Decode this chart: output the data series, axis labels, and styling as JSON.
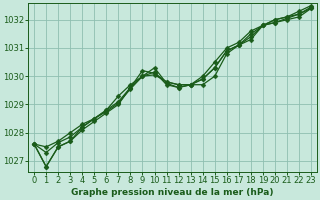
{
  "background_color": "#c8e8dc",
  "plot_bg_color": "#c8e8dc",
  "grid_color": "#8fbfb0",
  "line_color": "#1a5c1a",
  "marker_color": "#1a5c1a",
  "xlabel": "Graphe pression niveau de la mer (hPa)",
  "ylim": [
    1026.6,
    1032.6
  ],
  "xlim": [
    -0.5,
    23.5
  ],
  "yticks": [
    1027,
    1028,
    1029,
    1030,
    1031,
    1032
  ],
  "xticks": [
    0,
    1,
    2,
    3,
    4,
    5,
    6,
    7,
    8,
    9,
    10,
    11,
    12,
    13,
    14,
    15,
    16,
    17,
    18,
    19,
    20,
    21,
    22,
    23
  ],
  "xtick_labels": [
    "0",
    "1",
    "2",
    "3",
    "4",
    "5",
    "6",
    "7",
    "8",
    "9",
    "10",
    "11",
    "12",
    "13",
    "14",
    "15",
    "16",
    "17",
    "18",
    "19",
    "20",
    "21",
    "22",
    "23"
  ],
  "series": [
    [
      1027.6,
      1026.8,
      1027.5,
      1027.7,
      1028.1,
      1028.4,
      1028.7,
      1029.0,
      1029.6,
      1030.2,
      1030.1,
      1029.8,
      1029.7,
      1029.7,
      1030.0,
      1030.5,
      1031.0,
      1031.2,
      1031.6,
      1031.8,
      1031.9,
      1032.0,
      1032.1,
      1032.4
    ],
    [
      1027.6,
      1026.8,
      1027.5,
      1027.7,
      1028.2,
      1028.5,
      1028.8,
      1029.3,
      1029.7,
      1030.0,
      1030.3,
      1029.75,
      1029.6,
      1029.7,
      1029.7,
      1030.0,
      1030.8,
      1031.1,
      1031.3,
      1031.8,
      1032.0,
      1032.1,
      1032.3,
      1032.5
    ],
    [
      1027.6,
      1027.5,
      1027.7,
      1028.0,
      1028.3,
      1028.5,
      1028.75,
      1029.05,
      1029.55,
      1030.0,
      1030.05,
      1029.8,
      1029.7,
      1029.7,
      1029.9,
      1030.3,
      1030.9,
      1031.1,
      1031.5,
      1031.8,
      1031.9,
      1032.05,
      1032.2,
      1032.4
    ],
    [
      1027.6,
      1027.3,
      1027.65,
      1027.85,
      1028.2,
      1028.5,
      1028.8,
      1029.1,
      1029.6,
      1030.0,
      1030.15,
      1029.7,
      1029.6,
      1029.7,
      1029.9,
      1030.3,
      1030.9,
      1031.1,
      1031.4,
      1031.8,
      1032.0,
      1032.1,
      1032.2,
      1032.45
    ]
  ],
  "marker_size": 2.5,
  "line_width": 0.9,
  "tick_fontsize": 6.0,
  "xlabel_fontsize": 6.5
}
